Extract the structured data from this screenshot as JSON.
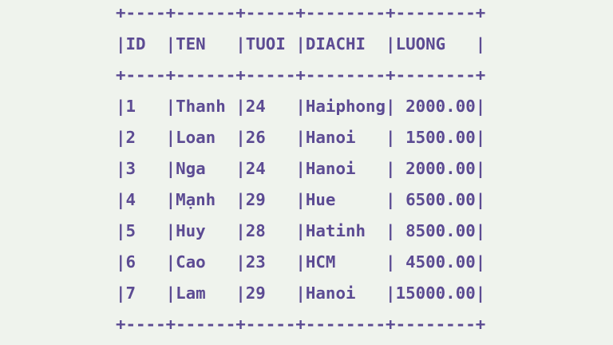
{
  "terminal": {
    "lines": [
      "+----+------+-----+--------+--------+",
      "|ID  |TEN   |TUOI |DIACHI  |LUONG   |",
      "+----+------+-----+--------+--------+",
      "|1   |Thanh |24   |Haiphong| 2000.00|",
      "|2   |Loan  |26   |Hanoi   | 1500.00|",
      "|3   |Nga   |24   |Hanoi   | 2000.00|",
      "|4   |Mạnh  |29   |Hue     | 6500.00|",
      "|5   |Huy   |28   |Hatinh  | 8500.00|",
      "|6   |Cao   |23   |HCM     | 4500.00|",
      "|7   |Lam   |29   |Hanoi   |15000.00|",
      "+----+------+-----+--------+--------+"
    ]
  },
  "table": {
    "columns": [
      "ID",
      "TEN",
      "TUOI",
      "DIACHI",
      "LUONG"
    ],
    "rows": [
      [
        "1",
        "Thanh",
        "24",
        "Haiphong",
        "2000.00"
      ],
      [
        "2",
        "Loan",
        "26",
        "Hanoi",
        "1500.00"
      ],
      [
        "3",
        "Nga",
        "24",
        "Hanoi",
        "2000.00"
      ],
      [
        "4",
        "Mạnh",
        "29",
        "Hue",
        "6500.00"
      ],
      [
        "5",
        "Huy",
        "28",
        "Hatinh",
        "8500.00"
      ],
      [
        "6",
        "Cao",
        "23",
        "HCM",
        "4500.00"
      ],
      [
        "7",
        "Lam",
        "29",
        "Hanoi",
        "15000.00"
      ]
    ]
  },
  "colors": {
    "background": "#eff3ed",
    "text": "#5c4b93"
  }
}
